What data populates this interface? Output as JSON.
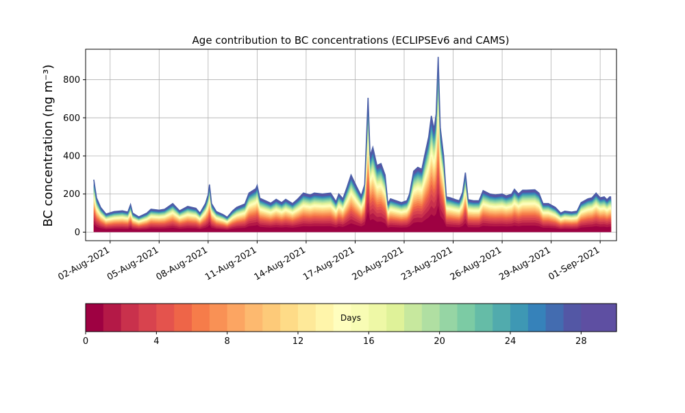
{
  "chart_data": {
    "type": "area",
    "title": "Age contribution to BC concentrations (ECLIPSEv6 and CAMS)",
    "ylabel": "BC concentration (ng m⁻³)",
    "xlabel": "",
    "ylim": [
      -45,
      960
    ],
    "yticks": [
      0,
      200,
      400,
      600,
      800
    ],
    "x_range": [
      "2021-07-31T12:00",
      "2021-09-02T00:00"
    ],
    "xticks": [
      {
        "date": "2021-08-02",
        "label": "02-Aug-2021"
      },
      {
        "date": "2021-08-05",
        "label": "05-Aug-2021"
      },
      {
        "date": "2021-08-08",
        "label": "08-Aug-2021"
      },
      {
        "date": "2021-08-11",
        "label": "11-Aug-2021"
      },
      {
        "date": "2021-08-14",
        "label": "14-Aug-2021"
      },
      {
        "date": "2021-08-17",
        "label": "17-Aug-2021"
      },
      {
        "date": "2021-08-20",
        "label": "20-Aug-2021"
      },
      {
        "date": "2021-08-23",
        "label": "23-Aug-2021"
      },
      {
        "date": "2021-08-26",
        "label": "26-Aug-2021"
      },
      {
        "date": "2021-08-29",
        "label": "29-Aug-2021"
      },
      {
        "date": "2021-09-01",
        "label": "01-Sep-2021"
      }
    ],
    "grid": true,
    "total": {
      "name": "Total",
      "points": [
        [
          "2021-08-01T00:00",
          275
        ],
        [
          "2021-08-01T04:00",
          180
        ],
        [
          "2021-08-01T10:00",
          130
        ],
        [
          "2021-08-01T18:00",
          95
        ],
        [
          "2021-08-02T06:00",
          108
        ],
        [
          "2021-08-02T18:00",
          112
        ],
        [
          "2021-08-03T02:00",
          105
        ],
        [
          "2021-08-03T06:00",
          145
        ],
        [
          "2021-08-03T09:00",
          100
        ],
        [
          "2021-08-03T18:00",
          80
        ],
        [
          "2021-08-04T06:00",
          100
        ],
        [
          "2021-08-04T12:00",
          120
        ],
        [
          "2021-08-05T00:00",
          115
        ],
        [
          "2021-08-05T08:00",
          120
        ],
        [
          "2021-08-05T20:00",
          150
        ],
        [
          "2021-08-06T06:00",
          112
        ],
        [
          "2021-08-06T18:00",
          135
        ],
        [
          "2021-08-07T06:00",
          125
        ],
        [
          "2021-08-07T12:00",
          100
        ],
        [
          "2021-08-07T20:00",
          150
        ],
        [
          "2021-08-08T00:00",
          195
        ],
        [
          "2021-08-08T02:00",
          250
        ],
        [
          "2021-08-08T05:00",
          150
        ],
        [
          "2021-08-08T12:00",
          108
        ],
        [
          "2021-08-08T22:00",
          92
        ],
        [
          "2021-08-09T04:00",
          78
        ],
        [
          "2021-08-09T12:00",
          112
        ],
        [
          "2021-08-09T18:00",
          130
        ],
        [
          "2021-08-10T06:00",
          148
        ],
        [
          "2021-08-10T12:00",
          205
        ],
        [
          "2021-08-10T22:00",
          228
        ],
        [
          "2021-08-11T00:00",
          245
        ],
        [
          "2021-08-11T04:00",
          178
        ],
        [
          "2021-08-11T12:00",
          165
        ],
        [
          "2021-08-11T20:00",
          152
        ],
        [
          "2021-08-12T04:00",
          172
        ],
        [
          "2021-08-12T12:00",
          155
        ],
        [
          "2021-08-12T18:00",
          172
        ],
        [
          "2021-08-13T04:00",
          150
        ],
        [
          "2021-08-13T12:00",
          175
        ],
        [
          "2021-08-13T20:00",
          205
        ],
        [
          "2021-08-14T06:00",
          195
        ],
        [
          "2021-08-14T12:00",
          205
        ],
        [
          "2021-08-15T00:00",
          200
        ],
        [
          "2021-08-15T12:00",
          205
        ],
        [
          "2021-08-15T20:00",
          160
        ],
        [
          "2021-08-16T00:00",
          200
        ],
        [
          "2021-08-16T06:00",
          175
        ],
        [
          "2021-08-16T12:00",
          235
        ],
        [
          "2021-08-16T18:00",
          300
        ],
        [
          "2021-08-17T02:00",
          240
        ],
        [
          "2021-08-17T09:00",
          190
        ],
        [
          "2021-08-17T14:00",
          250
        ],
        [
          "2021-08-17T19:00",
          705
        ],
        [
          "2021-08-17T22:00",
          400
        ],
        [
          "2021-08-18T02:00",
          445
        ],
        [
          "2021-08-18T08:00",
          350
        ],
        [
          "2021-08-18T14:00",
          360
        ],
        [
          "2021-08-18T20:00",
          300
        ],
        [
          "2021-08-19T00:00",
          150
        ],
        [
          "2021-08-19T04:00",
          175
        ],
        [
          "2021-08-19T12:00",
          165
        ],
        [
          "2021-08-19T20:00",
          155
        ],
        [
          "2021-08-20T04:00",
          165
        ],
        [
          "2021-08-20T08:00",
          200
        ],
        [
          "2021-08-20T14:00",
          320
        ],
        [
          "2021-08-20T20:00",
          340
        ],
        [
          "2021-08-21T02:00",
          330
        ],
        [
          "2021-08-21T06:00",
          400
        ],
        [
          "2021-08-21T12:00",
          500
        ],
        [
          "2021-08-21T16:00",
          610
        ],
        [
          "2021-08-21T20:00",
          540
        ],
        [
          "2021-08-21T23:00",
          620
        ],
        [
          "2021-08-22T02:00",
          920
        ],
        [
          "2021-08-22T05:00",
          550
        ],
        [
          "2021-08-22T10:00",
          400
        ],
        [
          "2021-08-22T14:00",
          185
        ],
        [
          "2021-08-22T20:00",
          180
        ],
        [
          "2021-08-23T04:00",
          170
        ],
        [
          "2021-08-23T09:00",
          165
        ],
        [
          "2021-08-23T14:00",
          210
        ],
        [
          "2021-08-23T18:00",
          312
        ],
        [
          "2021-08-23T22:00",
          170
        ],
        [
          "2021-08-24T06:00",
          165
        ],
        [
          "2021-08-24T14:00",
          165
        ],
        [
          "2021-08-24T20:00",
          218
        ],
        [
          "2021-08-25T06:00",
          200
        ],
        [
          "2021-08-25T14:00",
          195
        ],
        [
          "2021-08-26T00:00",
          200
        ],
        [
          "2021-08-26T06:00",
          190
        ],
        [
          "2021-08-26T14:00",
          200
        ],
        [
          "2021-08-26T18:00",
          225
        ],
        [
          "2021-08-27T00:00",
          200
        ],
        [
          "2021-08-27T06:00",
          220
        ],
        [
          "2021-08-27T12:00",
          220
        ],
        [
          "2021-08-28T00:00",
          222
        ],
        [
          "2021-08-28T06:00",
          205
        ],
        [
          "2021-08-28T12:00",
          150
        ],
        [
          "2021-08-28T20:00",
          150
        ],
        [
          "2021-08-29T06:00",
          130
        ],
        [
          "2021-08-29T14:00",
          100
        ],
        [
          "2021-08-29T20:00",
          110
        ],
        [
          "2021-08-30T06:00",
          105
        ],
        [
          "2021-08-30T14:00",
          110
        ],
        [
          "2021-08-30T20:00",
          155
        ],
        [
          "2021-08-31T06:00",
          175
        ],
        [
          "2021-08-31T12:00",
          180
        ],
        [
          "2021-08-31T18:00",
          205
        ],
        [
          "2021-09-01T00:00",
          180
        ],
        [
          "2021-09-01T06:00",
          185
        ],
        [
          "2021-09-01T10:00",
          170
        ],
        [
          "2021-09-01T14:00",
          185
        ],
        [
          "2021-09-01T16:00",
          185
        ]
      ]
    },
    "colorbar": {
      "label": "Days",
      "range": [
        0,
        30
      ],
      "ticks": [
        0,
        4,
        8,
        12,
        16,
        20,
        24,
        28
      ],
      "bins": 30,
      "colormap": "Spectral",
      "colors": [
        "#9e0142",
        "#b41947",
        "#c9314c",
        "#d8434e",
        "#e4534d",
        "#ee6548",
        "#f67c4a",
        "#f99155",
        "#fca562",
        "#fdb96f",
        "#fdca79",
        "#fedb87",
        "#fee999",
        "#fff5aa",
        "#fffebe",
        "#f8fcb4",
        "#eef8a6",
        "#dff299",
        "#c7e89e",
        "#b0dfa2",
        "#96d5a4",
        "#7ccba4",
        "#65bca7",
        "#51abad",
        "#3e98b4",
        "#3682ba",
        "#436cb0",
        "#5357a5",
        "#5e4fa2",
        "#5e4fa2"
      ]
    },
    "layer_profile_note": ""
  }
}
